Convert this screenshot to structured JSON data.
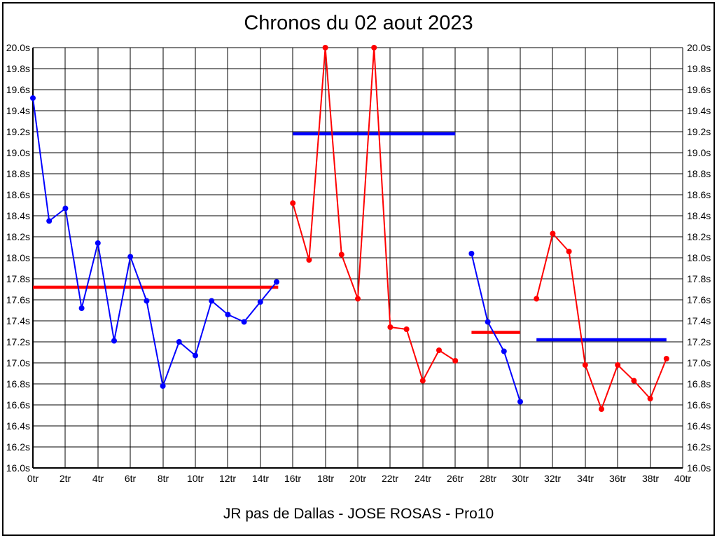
{
  "header": {
    "title": "Chronos du 02 aout 2023"
  },
  "footer": {
    "text": "JR pas de Dallas - JOSE ROSAS - Pro10"
  },
  "colors": {
    "blue": "#0000ff",
    "red": "#ff0000",
    "grid": "#000000",
    "text": "#000000",
    "background": "#ffffff"
  },
  "chart_data": {
    "type": "line",
    "title": "Chronos du 02 aout 2023",
    "subtitle": "JR pas de Dallas - JOSE ROSAS - Pro10",
    "xlabel": "",
    "ylabel": "",
    "x_unit": "tr",
    "y_unit": "s",
    "xlim": [
      0,
      40
    ],
    "ylim": [
      16.0,
      20.0
    ],
    "x_tick_step": 2,
    "y_tick_step": 0.2,
    "grid": true,
    "legend_position": "none",
    "series": [
      {
        "name": "run-1-blue",
        "color": "#0000ff",
        "x": [
          0,
          1,
          2,
          3,
          4,
          5,
          6,
          7,
          8,
          9,
          10,
          11,
          12,
          13,
          14,
          15
        ],
        "y": [
          19.52,
          18.35,
          18.47,
          17.52,
          18.14,
          17.21,
          18.01,
          17.59,
          16.78,
          17.2,
          17.07,
          17.59,
          17.46,
          17.39,
          17.58,
          17.77
        ]
      },
      {
        "name": "run-2-red",
        "color": "#ff0000",
        "x": [
          16,
          17,
          18,
          19,
          20,
          21,
          22,
          23,
          24,
          25,
          26
        ],
        "y": [
          18.52,
          17.98,
          20.0,
          18.03,
          17.61,
          20.0,
          17.34,
          17.32,
          16.83,
          17.12,
          17.02
        ]
      },
      {
        "name": "run-3-blue",
        "color": "#0000ff",
        "x": [
          27,
          28,
          29,
          30
        ],
        "y": [
          18.04,
          17.39,
          17.11,
          16.63
        ]
      },
      {
        "name": "run-4-red",
        "color": "#ff0000",
        "x": [
          31,
          32,
          33,
          34,
          35,
          36,
          37,
          38,
          39
        ],
        "y": [
          17.61,
          18.23,
          18.06,
          16.98,
          16.56,
          16.98,
          16.83,
          16.66,
          17.04
        ]
      }
    ],
    "average_lines": [
      {
        "name": "avg-run-1",
        "color": "#ff0000",
        "value": 17.72,
        "x_start": 0,
        "x_end": 15.1
      },
      {
        "name": "avg-run-2",
        "color": "#0000ff",
        "value": 19.18,
        "x_start": 16,
        "x_end": 26
      },
      {
        "name": "avg-run-3",
        "color": "#ff0000",
        "value": 17.29,
        "x_start": 27,
        "x_end": 30
      },
      {
        "name": "avg-run-4",
        "color": "#0000ff",
        "value": 17.22,
        "x_start": 31,
        "x_end": 39
      }
    ]
  }
}
